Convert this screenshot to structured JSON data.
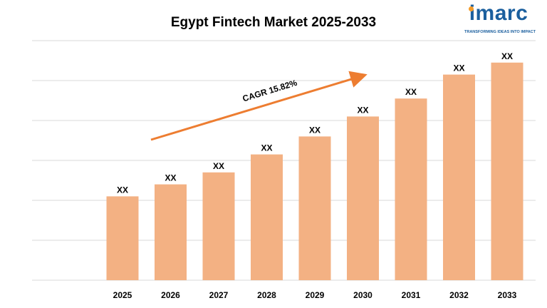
{
  "chart_data": {
    "type": "bar",
    "title": "Egypt Fintech Market 2025-2033",
    "categories": [
      "2025",
      "2026",
      "2027",
      "2028",
      "2029",
      "2030",
      "2031",
      "2032",
      "2033"
    ],
    "values": [
      21,
      24,
      27,
      31.5,
      36,
      41,
      45.5,
      51.5,
      54.5
    ],
    "data_labels": [
      "XX",
      "XX",
      "XX",
      "XX",
      "XX",
      "XX",
      "XX",
      "XX",
      "XX"
    ],
    "ylim": [
      0,
      60
    ],
    "grid": true,
    "bar_color": "#f3b183",
    "annotation": {
      "text": "CAGR 15.82%",
      "arrow_color": "#ed7d31"
    }
  },
  "logo": {
    "word": "imarc",
    "tagline": "TRANSFORMING IDEAS INTO IMPACT",
    "color": "#1b5f9e",
    "accent": "#f39c2b"
  }
}
